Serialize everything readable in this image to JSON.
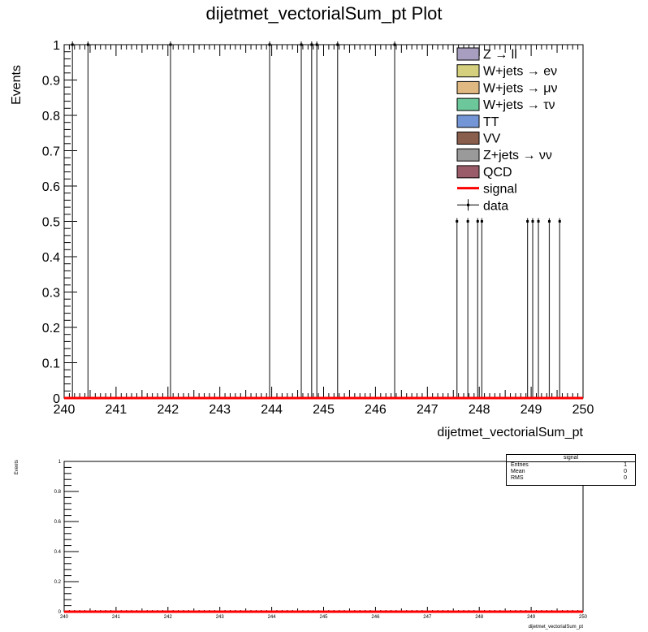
{
  "chart_data": [
    {
      "type": "bar",
      "title": "dijetmet_vectorialSum_pt Plot",
      "xlabel": "dijetmet_vectorialSum_pt",
      "ylabel": "Events",
      "xlim": [
        240,
        250
      ],
      "ylim": [
        0,
        1
      ],
      "x_ticks": [
        "240",
        "241",
        "242",
        "243",
        "244",
        "245",
        "246",
        "247",
        "248",
        "249",
        "250"
      ],
      "y_ticks": [
        "0",
        "0.1",
        "0.2",
        "0.3",
        "0.4",
        "0.5",
        "0.6",
        "0.7",
        "0.8",
        "0.9",
        "1"
      ],
      "legend_position": "top-right",
      "legend": [
        {
          "label": "Z → ll",
          "color": "#a89fc0",
          "kind": "box"
        },
        {
          "label": "W+jets → eν",
          "color": "#d4d07e",
          "kind": "box"
        },
        {
          "label": "W+jets → μν",
          "color": "#e0b882",
          "kind": "box"
        },
        {
          "label": "W+jets → τν",
          "color": "#6cc89a",
          "kind": "box"
        },
        {
          "label": "TT",
          "color": "#7496d6",
          "kind": "box"
        },
        {
          "label": "VV",
          "color": "#8a5e4c",
          "kind": "box"
        },
        {
          "label": "Z+jets → νν",
          "color": "#9a9a9a",
          "kind": "box"
        },
        {
          "label": "QCD",
          "color": "#9a5c68",
          "kind": "box"
        },
        {
          "label": "signal",
          "color": "#ff0000",
          "kind": "line"
        },
        {
          "label": "data",
          "color": "#000000",
          "kind": "marker"
        }
      ],
      "data_points_full": [
        {
          "x": 240.16,
          "y": 1
        },
        {
          "x": 240.46,
          "y": 1
        },
        {
          "x": 242.05,
          "y": 1
        },
        {
          "x": 243.96,
          "y": 1
        },
        {
          "x": 244.57,
          "y": 1
        },
        {
          "x": 244.77,
          "y": 1
        },
        {
          "x": 244.87,
          "y": 1
        },
        {
          "x": 245.27,
          "y": 1
        },
        {
          "x": 246.37,
          "y": 1
        }
      ],
      "data_points_half": [
        {
          "x": 247.57,
          "y": 0.5
        },
        {
          "x": 247.78,
          "y": 0.5
        },
        {
          "x": 247.97,
          "y": 0.5
        },
        {
          "x": 248.05,
          "y": 0.5
        },
        {
          "x": 248.93,
          "y": 0.5
        },
        {
          "x": 249.03,
          "y": 0.5
        },
        {
          "x": 249.14,
          "y": 0.5
        },
        {
          "x": 249.35,
          "y": 0.5
        },
        {
          "x": 249.55,
          "y": 0.5
        }
      ],
      "series": [
        {
          "name": "signal",
          "values": [
            0,
            0,
            0,
            0,
            0,
            0,
            0,
            0,
            0,
            0
          ]
        }
      ]
    },
    {
      "type": "line",
      "title": "",
      "xlabel": "dijetmet_vectorialSum_pt",
      "ylabel": "Events",
      "xlim": [
        240,
        250
      ],
      "ylim": [
        0,
        1
      ],
      "x_ticks": [
        "240",
        "241",
        "242",
        "243",
        "244",
        "245",
        "246",
        "247",
        "248",
        "249",
        "250"
      ],
      "y_ticks": [
        "0",
        "0.2",
        "0.4",
        "0.6",
        "0.8",
        "1"
      ],
      "series": [
        {
          "name": "signal",
          "x": [
            240,
            250
          ],
          "values": [
            0,
            0
          ]
        }
      ]
    }
  ],
  "stats": {
    "title": "signal",
    "rows": [
      {
        "label": "Entries",
        "value": "1"
      },
      {
        "label": "Mean",
        "value": "0"
      },
      {
        "label": "RMS",
        "value": "0"
      }
    ]
  }
}
